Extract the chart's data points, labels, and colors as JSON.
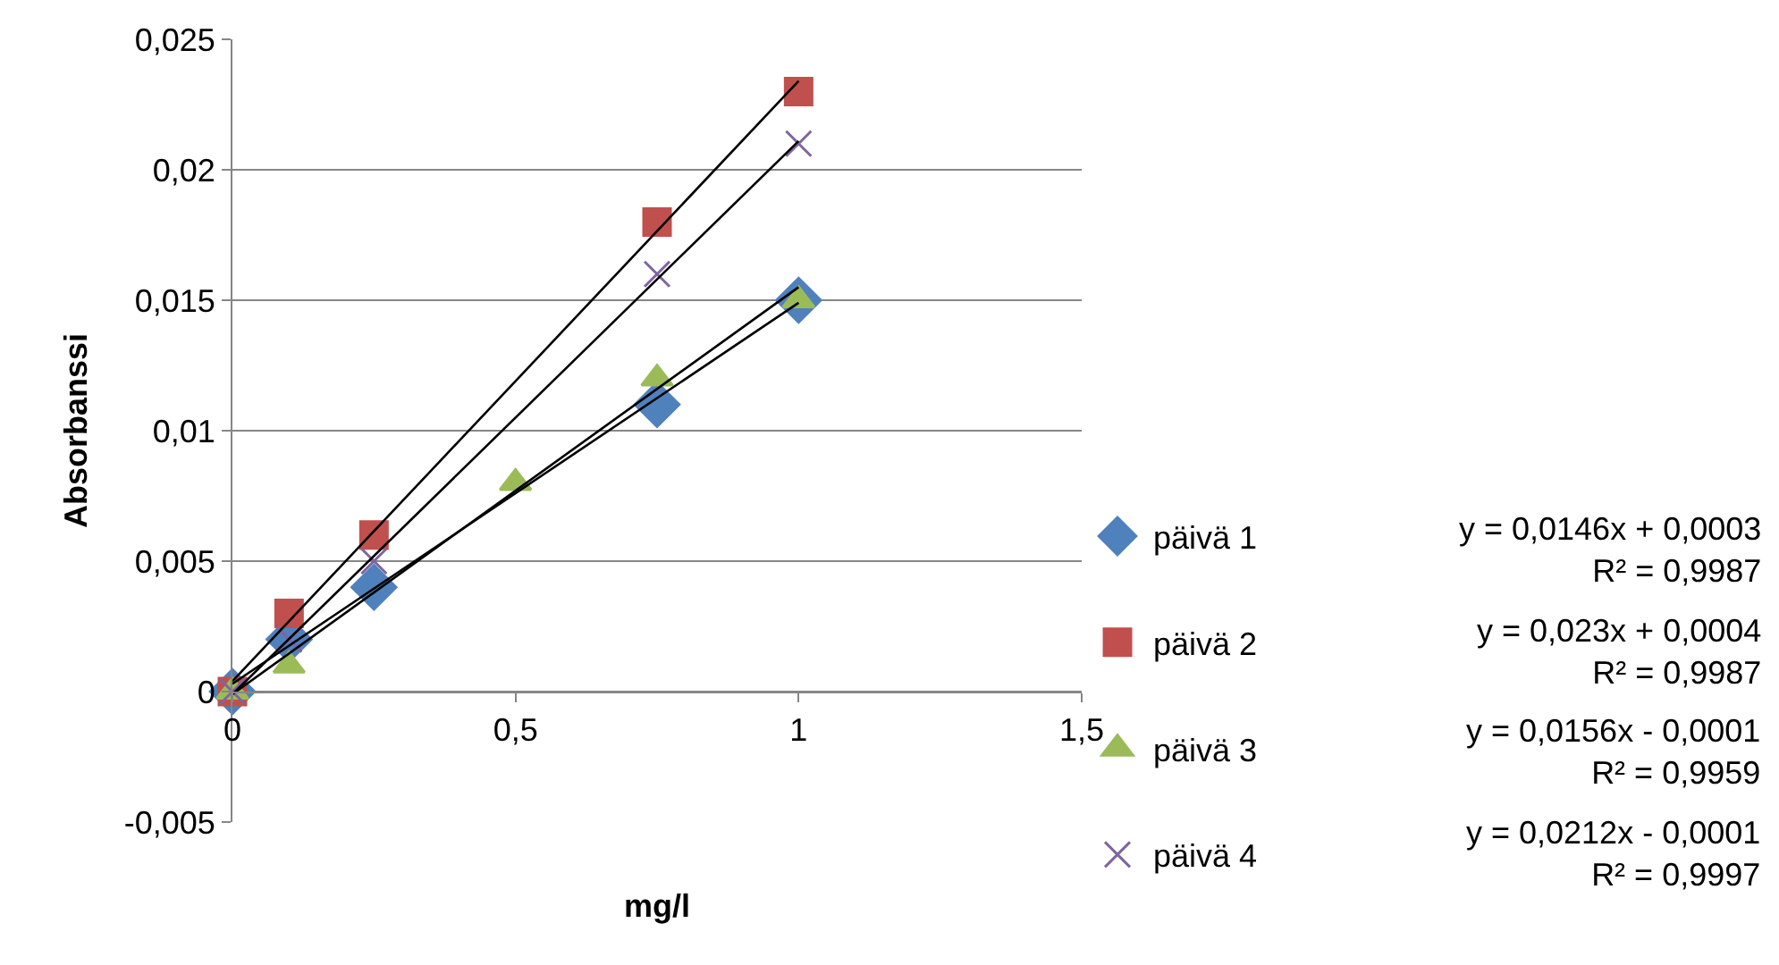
{
  "chart_data": {
    "type": "scatter",
    "xlabel": "mg/l",
    "ylabel": "Absorbanssi",
    "xlim": [
      0,
      1.5
    ],
    "xticks": [
      0,
      {
        "value": 0.5,
        "label": "0,5"
      },
      1,
      {
        "value": 1.5,
        "label": "1,5"
      }
    ],
    "ylim": [
      -0.005,
      0.025
    ],
    "yticks": [
      {
        "value": -0.005,
        "label": "-0,005"
      },
      0,
      {
        "value": 0.005,
        "label": "0,005"
      },
      {
        "value": 0.01,
        "label": "0,01"
      },
      {
        "value": 0.015,
        "label": "0,015"
      },
      {
        "value": 0.02,
        "label": "0,02"
      },
      {
        "value": 0.025,
        "label": "0,025"
      }
    ],
    "grid": "y",
    "legend": "right",
    "series": [
      {
        "name": "päivä 1",
        "color": "#4f81bd",
        "marker": "diamond",
        "x": [
          0,
          0.1,
          0.25,
          0.75,
          1
        ],
        "values": [
          0,
          0.002,
          0.004,
          0.011,
          0.015
        ]
      },
      {
        "name": "päivä 2",
        "color": "#c0504d",
        "marker": "square",
        "x": [
          0,
          0.1,
          0.25,
          0.75,
          1
        ],
        "values": [
          0,
          0.003,
          0.006,
          0.018,
          0.023
        ]
      },
      {
        "name": "päivä 3",
        "color": "#9bbb59",
        "marker": "triangle",
        "x": [
          0,
          0.1,
          0.5,
          0.75,
          1
        ],
        "values": [
          0,
          0.001,
          0.008,
          0.012,
          0.015
        ]
      },
      {
        "name": "päivä 4",
        "color": "#8064a2",
        "marker": "cross",
        "x": [
          0,
          0.1,
          0.25,
          0.75,
          1
        ],
        "values": [
          0,
          0.002,
          0.005,
          0.016,
          0.021
        ]
      },
      {
        "type": "line",
        "color": "#000000",
        "marker": "none",
        "x": [
          0,
          1
        ],
        "values": [
          0.0003,
          0.0149
        ]
      },
      {
        "type": "line",
        "color": "#000000",
        "marker": "none",
        "x": [
          0,
          1
        ],
        "values": [
          0.0004,
          0.0234
        ]
      },
      {
        "type": "line",
        "color": "#000000",
        "marker": "none",
        "x": [
          0,
          1
        ],
        "values": [
          -0.0001,
          0.0155
        ]
      },
      {
        "type": "line",
        "color": "#000000",
        "marker": "none",
        "x": [
          0,
          1
        ],
        "values": [
          -0.0001,
          0.0211
        ]
      }
    ],
    "annotations": [
      "y = 0,0146x + 0,0003\nR² = 0,9987",
      "y = 0,023x + 0,0004\nR² = 0,9987",
      "y = 0,0156x - 0,0001\nR² = 0,9959",
      "y = 0,0212x - 0,0001\nR² = 0,9997"
    ]
  }
}
